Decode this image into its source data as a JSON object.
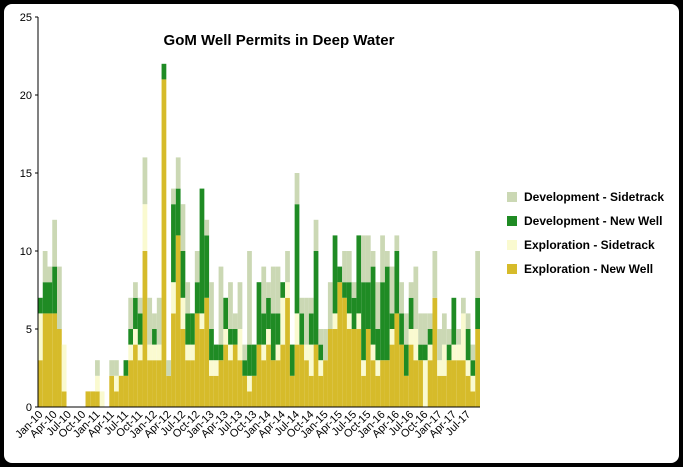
{
  "chart_data": {
    "type": "stacked_bar",
    "title": "GoM Well Permits in Deep Water",
    "categories": [
      "Jan-10",
      null,
      null,
      "Apr-10",
      null,
      null,
      "Jul-10",
      null,
      null,
      "Oct-10",
      null,
      null,
      "Jan-11",
      null,
      null,
      "Apr-11",
      null,
      null,
      "Jul-11",
      null,
      null,
      "Oct-11",
      null,
      null,
      "Jan-12",
      null,
      null,
      "Apr-12",
      null,
      null,
      "Jul-12",
      null,
      null,
      "Oct-12",
      null,
      null,
      "Jan-13",
      null,
      null,
      "Apr-13",
      null,
      null,
      "Jul-13",
      null,
      null,
      "Oct-13",
      null,
      null,
      "Jan-14",
      null,
      null,
      "Apr-14",
      null,
      null,
      "Jul-14",
      null,
      null,
      "Oct-14",
      null,
      null,
      "Jan-15",
      null,
      null,
      "Apr-15",
      null,
      null,
      "Jul-15",
      null,
      null,
      "Oct-15",
      null,
      null,
      "Jan-16",
      null,
      null,
      "Apr-16",
      null,
      null,
      "Jul-16",
      null,
      null,
      "Oct-16",
      null,
      null,
      "Jan-17",
      null,
      null,
      "Apr-17",
      null,
      null,
      "Jul-17",
      null,
      null
    ],
    "series": [
      {
        "name": "Exploration - New Well",
        "color": "#d6bb2a",
        "values": [
          3,
          6,
          6,
          6,
          5,
          1,
          0,
          0,
          0,
          0,
          1,
          1,
          1,
          0,
          0,
          2,
          1,
          2,
          2,
          3,
          4,
          3,
          10,
          3,
          3,
          3,
          21,
          2,
          6,
          11,
          5,
          3,
          3,
          6,
          5,
          7,
          2,
          2,
          3,
          4,
          3,
          4,
          3,
          2,
          1,
          2,
          4,
          3,
          4,
          3,
          3,
          4,
          7,
          2,
          4,
          4,
          3,
          2,
          4,
          2,
          3,
          5,
          5,
          8,
          7,
          5,
          5,
          5,
          2,
          5,
          3,
          2,
          3,
          3,
          4,
          6,
          4,
          2,
          4,
          3,
          3,
          0,
          3,
          7,
          2,
          2,
          3,
          3,
          3,
          3,
          2,
          1,
          5
        ]
      },
      {
        "name": "Exploration - Sidetrack",
        "color": "#fafad0",
        "values": [
          3,
          0,
          0,
          0,
          0,
          3,
          0,
          0,
          0,
          0,
          0,
          0,
          1,
          1,
          0,
          0,
          1,
          0,
          0,
          1,
          1,
          1,
          3,
          1,
          1,
          1,
          0,
          0,
          2,
          0,
          2,
          1,
          1,
          0,
          1,
          0,
          1,
          1,
          0,
          1,
          1,
          0,
          2,
          0,
          1,
          0,
          0,
          1,
          1,
          0,
          1,
          3,
          1,
          0,
          2,
          0,
          1,
          2,
          0,
          1,
          0,
          0,
          1,
          0,
          0,
          1,
          0,
          1,
          1,
          0,
          1,
          1,
          0,
          0,
          1,
          0,
          0,
          0,
          1,
          2,
          0,
          3,
          1,
          0,
          1,
          2,
          0,
          1,
          1,
          3,
          1,
          1,
          0
        ]
      },
      {
        "name": "Development - New Well",
        "color": "#1f8b24",
        "values": [
          1,
          2,
          2,
          3,
          0,
          0,
          0,
          0,
          0,
          0,
          0,
          0,
          0,
          0,
          0,
          0,
          0,
          0,
          1,
          1,
          2,
          2,
          0,
          0,
          1,
          0,
          1,
          0,
          5,
          3,
          3,
          2,
          2,
          2,
          8,
          4,
          2,
          1,
          1,
          2,
          1,
          1,
          0,
          1,
          2,
          2,
          4,
          2,
          2,
          3,
          2,
          1,
          0,
          2,
          7,
          2,
          0,
          2,
          6,
          1,
          0,
          0,
          5,
          1,
          1,
          2,
          2,
          5,
          5,
          3,
          5,
          2,
          5,
          6,
          1,
          4,
          2,
          2,
          2,
          0,
          1,
          1,
          1,
          0,
          0,
          0,
          1,
          3,
          0,
          0,
          2,
          1,
          2
        ]
      },
      {
        "name": "Development - Sidetrack",
        "color": "#cbd8b4",
        "values": [
          0,
          2,
          1,
          3,
          4,
          0,
          0,
          0,
          0,
          0,
          0,
          0,
          1,
          0,
          0,
          1,
          1,
          0,
          0,
          2,
          1,
          1,
          3,
          3,
          1,
          3,
          0,
          1,
          1,
          2,
          3,
          2,
          0,
          2,
          0,
          1,
          3,
          0,
          5,
          0,
          3,
          1,
          3,
          1,
          6,
          0,
          0,
          3,
          1,
          3,
          3,
          0,
          2,
          0,
          2,
          1,
          3,
          1,
          2,
          1,
          2,
          3,
          0,
          0,
          2,
          2,
          1,
          0,
          3,
          3,
          1,
          3,
          3,
          1,
          3,
          1,
          2,
          2,
          1,
          4,
          2,
          2,
          1,
          3,
          2,
          2,
          1,
          0,
          1,
          1,
          1,
          1,
          3
        ]
      }
    ],
    "ylim": [
      0,
      25
    ],
    "yticks": [
      0,
      5,
      10,
      15,
      20,
      25
    ],
    "grid": false,
    "legend": "right"
  }
}
